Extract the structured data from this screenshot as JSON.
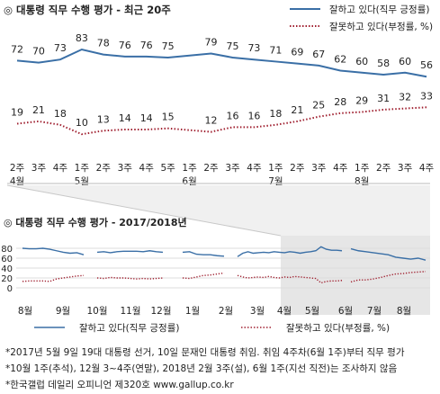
{
  "chart_data": [
    {
      "type": "line",
      "title": "◎ 대통령 직무 수행 평가 - 최근 20주",
      "x_tick_labels": [
        {
          "week": "2주",
          "month": "4월"
        },
        {
          "week": "3주",
          "month": ""
        },
        {
          "week": "4주",
          "month": ""
        },
        {
          "week": "1주",
          "month": "5월"
        },
        {
          "week": "2주",
          "month": ""
        },
        {
          "week": "3주",
          "month": ""
        },
        {
          "week": "4주",
          "month": ""
        },
        {
          "week": "5주",
          "month": ""
        },
        {
          "week": "1주",
          "month": "6월"
        },
        {
          "week": "2주",
          "month": ""
        },
        {
          "week": "3주",
          "month": ""
        },
        {
          "week": "4주",
          "month": ""
        },
        {
          "week": "1주",
          "month": "7월"
        },
        {
          "week": "2주",
          "month": ""
        },
        {
          "week": "3주",
          "month": ""
        },
        {
          "week": "4주",
          "month": ""
        },
        {
          "week": "1주",
          "month": "8월"
        },
        {
          "week": "2주",
          "month": ""
        },
        {
          "week": "3주",
          "month": ""
        },
        {
          "week": "4주",
          "month": ""
        }
      ],
      "series": [
        {
          "name": "잘하고 있다(직무 긍정률)",
          "color": "#3a6fa6",
          "style": "solid",
          "values": [
            72,
            70,
            73,
            83,
            78,
            76,
            76,
            75,
            null,
            79,
            75,
            73,
            71,
            69,
            67,
            62,
            60,
            58,
            60,
            56
          ]
        },
        {
          "name": "잘못하고 있다(부정률, %)",
          "color": "#a02030",
          "style": "dotted",
          "values": [
            19,
            21,
            18,
            10,
            13,
            14,
            14,
            15,
            null,
            12,
            16,
            16,
            18,
            21,
            25,
            28,
            29,
            31,
            32,
            33
          ]
        }
      ],
      "data_labels": {
        "positive": [
          "72",
          "70",
          "73",
          "83",
          "78",
          "76",
          "76",
          "75",
          "",
          "79",
          "75",
          "73",
          "71",
          "69",
          "67",
          "62",
          "60",
          "58",
          "60",
          "56"
        ],
        "negative": [
          "19",
          "21",
          "18",
          "10",
          "13",
          "14",
          "14",
          "15",
          "",
          "12",
          "16",
          "16",
          "18",
          "21",
          "25",
          "28",
          "29",
          "31",
          "32",
          "33"
        ]
      },
      "legend": {
        "positive": "잘하고 있다(직무 긍정률)",
        "negative": "잘못하고 있다(부정률, %)",
        "position": "top-right"
      }
    },
    {
      "type": "line",
      "title": "◎ 대통령 직무 수행 평가 - 2017/2018년",
      "ylim": [
        0,
        90
      ],
      "y_ticks": [
        "0",
        "20",
        "40",
        "60",
        "80"
      ],
      "x_tick_labels": [
        "8월",
        "9월",
        "10월",
        "11월",
        "12월",
        "1월",
        "2월",
        "3월",
        "4월",
        "5월",
        "6월",
        "7월",
        "8월"
      ],
      "positive_segments": [
        [
          80,
          79,
          79,
          80,
          78,
          75,
          72,
          70,
          71,
          67
        ],
        [
          72,
          73,
          71,
          73,
          74,
          74,
          74,
          73,
          75,
          73,
          72
        ],
        [
          72,
          73,
          68,
          67,
          67,
          65,
          64
        ],
        [
          63,
          70,
          73,
          70,
          71,
          72,
          71,
          73,
          72,
          71,
          73,
          72,
          70,
          72,
          73,
          75,
          83,
          78,
          76,
          76,
          75
        ],
        [
          79,
          75,
          73,
          71,
          69,
          67,
          62,
          60,
          58,
          60,
          56
        ]
      ],
      "negative_segments": [
        [
          13,
          14,
          14,
          14,
          13,
          18,
          20,
          22,
          24,
          25
        ],
        [
          20,
          19,
          21,
          20,
          20,
          19,
          18,
          19,
          18,
          19,
          20
        ],
        [
          20,
          19,
          22,
          25,
          26,
          28,
          30
        ],
        [
          25,
          22,
          20,
          21,
          22,
          21,
          23,
          21,
          20,
          22,
          21,
          23,
          22,
          21,
          20,
          19,
          10,
          13,
          14,
          14,
          15
        ],
        [
          12,
          16,
          16,
          18,
          21,
          25,
          28,
          29,
          31,
          32,
          33
        ]
      ],
      "legend": {
        "positive": "잘하고 있다(직무 긍정률)",
        "negative": "잘못하고 있다(부정률, %)",
        "position": "bottom"
      }
    }
  ],
  "footnotes": [
    "*2017년 5월 9일 19대 대통령 선거, 10일 문재인 대통령 취임. 취임 4주차(6월 1주)부터 직무 평가",
    "*10월 1주(추석), 12월 3~4주(연말), 2018년 2월 3주(설), 6월 1주(지선 직전)는 조사하지 않음",
    "*한국갤럽 데일리 오피니언 제320호 www.gallup.co.kr"
  ],
  "colors": {
    "positive": "#3a6fa6",
    "negative": "#a02030",
    "highlight": "#e6e6e6"
  }
}
